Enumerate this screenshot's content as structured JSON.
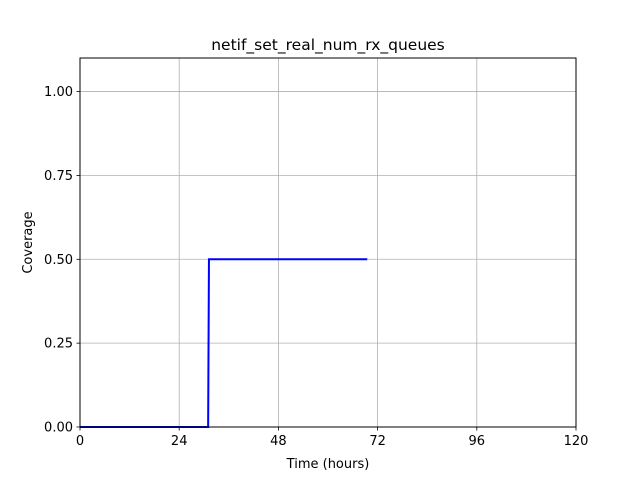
{
  "chart_data": {
    "type": "line",
    "title": "netif_set_real_num_rx_queues",
    "xlabel": "Time (hours)",
    "ylabel": "Coverage",
    "xlim": [
      0,
      120
    ],
    "ylim": [
      0,
      1.1
    ],
    "xticks": [
      0,
      24,
      48,
      72,
      96,
      120
    ],
    "xtick_labels": [
      "0",
      "24",
      "48",
      "72",
      "96",
      "120"
    ],
    "yticks": [
      0.0,
      0.25,
      0.5,
      0.75,
      1.0
    ],
    "ytick_labels": [
      "0.00",
      "0.25",
      "0.50",
      "0.75",
      "1.00"
    ],
    "grid": true,
    "series": [
      {
        "color": "#0000ff",
        "x": [
          0,
          31,
          31.2,
          69.5
        ],
        "y": [
          0,
          0,
          0.5,
          0.5
        ]
      }
    ]
  }
}
